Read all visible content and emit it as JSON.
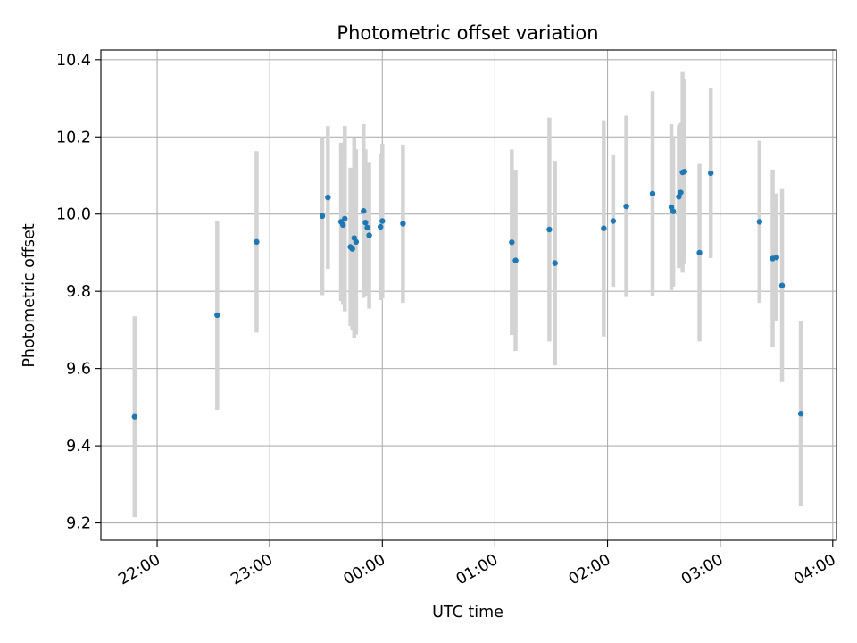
{
  "chart_data": {
    "type": "scatter",
    "title": "Photometric offset variation",
    "xlabel": "UTC time",
    "ylabel": "Photometric offset",
    "x_range": [
      "2023-01-01T21:30:00",
      "2023-01-02T04:02:00"
    ],
    "ylim": [
      9.155,
      10.425
    ],
    "x_ticks": [
      {
        "time": "2023-01-01T22:00:00",
        "label": "22:00"
      },
      {
        "time": "2023-01-01T23:00:00",
        "label": "23:00"
      },
      {
        "time": "2023-01-02T00:00:00",
        "label": "00:00"
      },
      {
        "time": "2023-01-02T01:00:00",
        "label": "01:00"
      },
      {
        "time": "2023-01-02T02:00:00",
        "label": "02:00"
      },
      {
        "time": "2023-01-02T03:00:00",
        "label": "03:00"
      },
      {
        "time": "2023-01-02T04:00:00",
        "label": "04:00"
      }
    ],
    "y_ticks": [
      {
        "value": 9.2,
        "label": "9.2"
      },
      {
        "value": 9.4,
        "label": "9.4"
      },
      {
        "value": 9.6,
        "label": "9.6"
      },
      {
        "value": 9.8,
        "label": "9.8"
      },
      {
        "value": 10.0,
        "label": "10.0"
      },
      {
        "value": 10.2,
        "label": "10.2"
      },
      {
        "value": 10.4,
        "label": "10.4"
      }
    ],
    "grid": true,
    "marker_color": "#1f77b4",
    "errorbar_color": "#d3d3d3",
    "points": [
      {
        "time": "2023-01-01T21:48:00",
        "y": 9.475,
        "err": 0.26
      },
      {
        "time": "2023-01-01T22:32:00",
        "y": 9.738,
        "err": 0.245
      },
      {
        "time": "2023-01-01T22:53:00",
        "y": 9.928,
        "err": 0.235
      },
      {
        "time": "2023-01-01T23:28:00",
        "y": 9.995,
        "err": 0.205
      },
      {
        "time": "2023-01-01T23:31:00",
        "y": 10.043,
        "err": 0.185
      },
      {
        "time": "2023-01-01T23:38:00",
        "y": 9.98,
        "err": 0.205
      },
      {
        "time": "2023-01-01T23:39:00",
        "y": 9.972,
        "err": 0.205
      },
      {
        "time": "2023-01-01T23:40:00",
        "y": 9.988,
        "err": 0.24
      },
      {
        "time": "2023-01-01T23:43:00",
        "y": 9.915,
        "err": 0.205
      },
      {
        "time": "2023-01-01T23:44:00",
        "y": 9.91,
        "err": 0.21
      },
      {
        "time": "2023-01-01T23:45:00",
        "y": 9.938,
        "err": 0.26
      },
      {
        "time": "2023-01-01T23:46:00",
        "y": 9.928,
        "err": 0.24
      },
      {
        "time": "2023-01-01T23:50:00",
        "y": 10.008,
        "err": 0.225
      },
      {
        "time": "2023-01-01T23:51:00",
        "y": 9.978,
        "err": 0.19
      },
      {
        "time": "2023-01-01T23:52:00",
        "y": 9.965,
        "err": 0.17
      },
      {
        "time": "2023-01-01T23:53:00",
        "y": 9.945,
        "err": 0.19
      },
      {
        "time": "2023-01-01T23:59:00",
        "y": 9.967,
        "err": 0.19
      },
      {
        "time": "2023-01-02T00:00:00",
        "y": 9.982,
        "err": 0.2
      },
      {
        "time": "2023-01-02T00:11:00",
        "y": 9.975,
        "err": 0.205
      },
      {
        "time": "2023-01-02T01:09:00",
        "y": 9.927,
        "err": 0.24
      },
      {
        "time": "2023-01-02T01:11:00",
        "y": 9.88,
        "err": 0.235
      },
      {
        "time": "2023-01-02T01:29:00",
        "y": 9.96,
        "err": 0.29
      },
      {
        "time": "2023-01-02T01:32:00",
        "y": 9.873,
        "err": 0.265
      },
      {
        "time": "2023-01-02T01:58:00",
        "y": 9.963,
        "err": 0.28
      },
      {
        "time": "2023-01-02T02:03:00",
        "y": 9.982,
        "err": 0.17
      },
      {
        "time": "2023-01-02T02:10:00",
        "y": 10.02,
        "err": 0.235
      },
      {
        "time": "2023-01-02T02:24:00",
        "y": 10.053,
        "err": 0.265
      },
      {
        "time": "2023-01-02T02:34:00",
        "y": 10.018,
        "err": 0.215
      },
      {
        "time": "2023-01-02T02:35:00",
        "y": 10.007,
        "err": 0.195
      },
      {
        "time": "2023-01-02T02:38:00",
        "y": 10.045,
        "err": 0.185
      },
      {
        "time": "2023-01-02T02:39:00",
        "y": 10.056,
        "err": 0.18
      },
      {
        "time": "2023-01-02T02:40:00",
        "y": 10.108,
        "err": 0.26
      },
      {
        "time": "2023-01-02T02:41:00",
        "y": 10.11,
        "err": 0.24
      },
      {
        "time": "2023-01-02T02:49:00",
        "y": 9.9,
        "err": 0.23
      },
      {
        "time": "2023-01-02T02:55:00",
        "y": 10.106,
        "err": 0.22
      },
      {
        "time": "2023-01-02T03:21:00",
        "y": 9.98,
        "err": 0.21
      },
      {
        "time": "2023-01-02T03:28:00",
        "y": 9.885,
        "err": 0.23
      },
      {
        "time": "2023-01-02T03:30:00",
        "y": 9.888,
        "err": 0.165
      },
      {
        "time": "2023-01-02T03:33:00",
        "y": 9.815,
        "err": 0.25
      },
      {
        "time": "2023-01-02T03:43:00",
        "y": 9.483,
        "err": 0.24
      }
    ]
  }
}
